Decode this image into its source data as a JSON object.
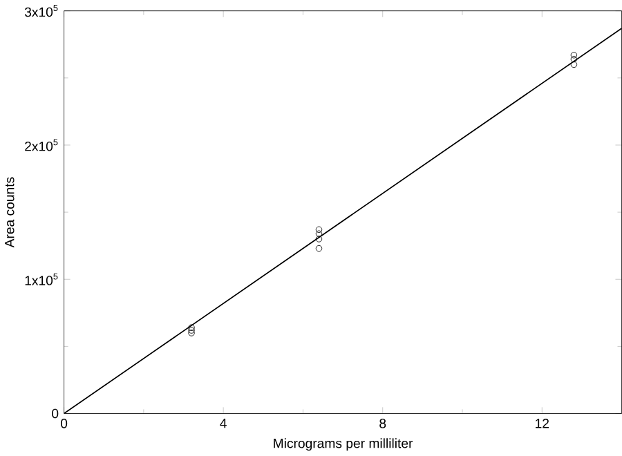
{
  "chart_data": {
    "type": "scatter",
    "xlabel": "Micrograms per milliliter",
    "ylabel": "Area counts",
    "xlim": [
      0,
      14
    ],
    "ylim": [
      0,
      300000
    ],
    "xticks": [
      0,
      4,
      8,
      12
    ],
    "yticks": [
      0,
      {
        "value": 100000,
        "label": "1x10$^{5}$"
      },
      {
        "value": 200000,
        "label": "2x10$^{5}$"
      },
      {
        "value": 300000,
        "label": "3x10$^{5}$"
      }
    ],
    "series": [
      {
        "marker": "circle",
        "color": "#000000",
        "x": [
          3.2,
          3.2,
          3.2,
          6.4,
          6.4,
          6.4,
          6.4,
          12.8,
          12.8,
          12.8
        ],
        "values": [
          60000,
          62000,
          64000,
          123000,
          130000,
          134000,
          137000,
          260000,
          264000,
          267000
        ]
      },
      {
        "type": "line",
        "marker": "none",
        "color": "#000000",
        "x": [
          0,
          14
        ],
        "values": [
          0,
          287000
        ]
      }
    ]
  }
}
